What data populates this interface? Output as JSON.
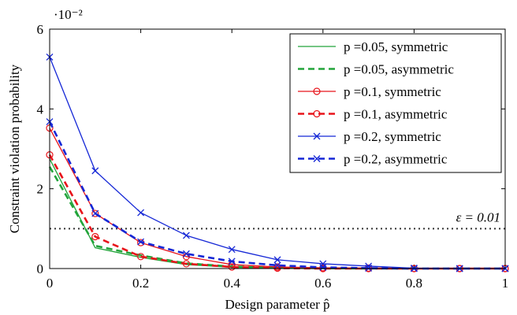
{
  "chart_data": {
    "type": "line",
    "xlabel": "Design parameter p̂",
    "ylabel": "Constraint violation probability",
    "y_scale_label": "·10⁻²",
    "xlim": [
      0,
      1
    ],
    "ylim": [
      0,
      6
    ],
    "x_ticks": [
      "0",
      "0.2",
      "0.4",
      "0.6",
      "0.8",
      "1"
    ],
    "y_ticks": [
      "0",
      "2",
      "4",
      "6"
    ],
    "x_tick_values": [
      0,
      0.2,
      0.4,
      0.6,
      0.8,
      1
    ],
    "y_tick_values": [
      0,
      2,
      4,
      6
    ],
    "legend_position": "top-right",
    "x": [
      0,
      0.1,
      0.2,
      0.3,
      0.4,
      0.5,
      0.6,
      0.7,
      0.8,
      0.9,
      1.0
    ],
    "series": [
      {
        "name": "p =0.05, symmetric",
        "color": "#22a43a",
        "dash": "solid",
        "marker": "none",
        "values": [
          2.75,
          0.52,
          0.28,
          0.1,
          0.03,
          0.01,
          0.0,
          0.0,
          0.0,
          0.0,
          0.0
        ]
      },
      {
        "name": "p =0.05, asymmetric",
        "color": "#22a43a",
        "dash": "dashed",
        "marker": "none",
        "values": [
          2.55,
          0.57,
          0.33,
          0.13,
          0.05,
          0.02,
          0.01,
          0.0,
          0.0,
          0.0,
          0.0
        ]
      },
      {
        "name": "p =0.1, symmetric",
        "color": "#e8141b",
        "dash": "solid",
        "marker": "circle",
        "values": [
          3.52,
          1.38,
          0.65,
          0.3,
          0.1,
          0.04,
          0.02,
          0.01,
          0.0,
          0.0,
          0.0
        ]
      },
      {
        "name": "p =0.1, asymmetric",
        "color": "#e8141b",
        "dash": "dashed",
        "marker": "circle",
        "values": [
          2.85,
          0.8,
          0.3,
          0.12,
          0.04,
          0.01,
          0.0,
          0.0,
          0.0,
          0.0,
          0.0
        ]
      },
      {
        "name": "p =0.2, symmetric",
        "color": "#1527d6",
        "dash": "solid",
        "marker": "x",
        "values": [
          5.3,
          2.45,
          1.4,
          0.83,
          0.48,
          0.22,
          0.12,
          0.06,
          0.01,
          0.0,
          0.0
        ]
      },
      {
        "name": "p =0.2, asymmetric",
        "color": "#1527d6",
        "dash": "dashed",
        "marker": "x",
        "values": [
          3.68,
          1.38,
          0.67,
          0.37,
          0.18,
          0.08,
          0.03,
          0.01,
          0.0,
          0.0,
          0.0
        ]
      }
    ],
    "threshold": {
      "value": 1.0,
      "label": "ε = 0.01",
      "style": "dotted",
      "color": "#333333"
    }
  }
}
